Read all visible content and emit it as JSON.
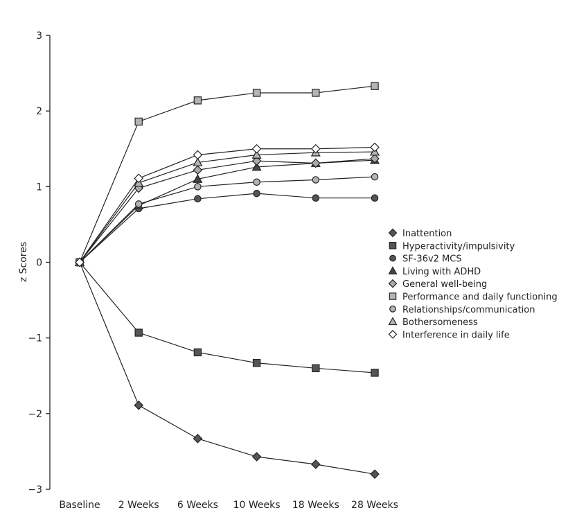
{
  "chart_data": {
    "type": "line",
    "title": "",
    "xlabel": "",
    "ylabel": "z Scores",
    "ylim": [
      -3,
      3
    ],
    "yticks": [
      "3",
      "2",
      "1",
      "0",
      "−1",
      "−2",
      "−3"
    ],
    "ytick_values": [
      3,
      2,
      1,
      0,
      -1,
      -2,
      -3
    ],
    "categories": [
      "Baseline",
      "2 Weeks",
      "6 Weeks",
      "10 Weeks",
      "18 Weeks",
      "28 Weeks"
    ],
    "legend_position": "right",
    "series": [
      {
        "name": "Inattention",
        "marker": "diamond",
        "fill": "#555555",
        "values": [
          0,
          -1.89,
          -2.33,
          -2.57,
          -2.67,
          -2.8
        ]
      },
      {
        "name": "Hyperactivity/impulsivity",
        "marker": "square",
        "fill": "#555555",
        "values": [
          0,
          -0.93,
          -1.19,
          -1.33,
          -1.4,
          -1.46
        ]
      },
      {
        "name": "SF-36v2 MCS",
        "marker": "circle",
        "fill": "#555555",
        "values": [
          0,
          0.71,
          0.84,
          0.91,
          0.85,
          0.85
        ]
      },
      {
        "name": "Living with ADHD",
        "marker": "triangle",
        "fill": "#444444",
        "values": [
          0,
          0.75,
          1.1,
          1.26,
          1.31,
          1.35
        ]
      },
      {
        "name": "General well-being",
        "marker": "diamond",
        "fill": "#aaaaaa",
        "values": [
          0,
          0.98,
          1.22,
          1.34,
          1.31,
          1.37
        ]
      },
      {
        "name": "Performance and daily functioning",
        "marker": "square",
        "fill": "#b4b4b4",
        "values": [
          0,
          1.86,
          2.14,
          2.24,
          2.24,
          2.33
        ]
      },
      {
        "name": "Relationships/communication",
        "marker": "circle",
        "fill": "#b4b4b4",
        "values": [
          0,
          0.77,
          1.0,
          1.06,
          1.09,
          1.13
        ]
      },
      {
        "name": "Bothersomeness",
        "marker": "triangle",
        "fill": "#b4b4b4",
        "values": [
          0,
          1.05,
          1.32,
          1.42,
          1.45,
          1.46
        ]
      },
      {
        "name": "Interference in daily life",
        "marker": "diamond",
        "fill": "#ffffff",
        "values": [
          0,
          1.11,
          1.42,
          1.5,
          1.5,
          1.52
        ]
      }
    ]
  }
}
